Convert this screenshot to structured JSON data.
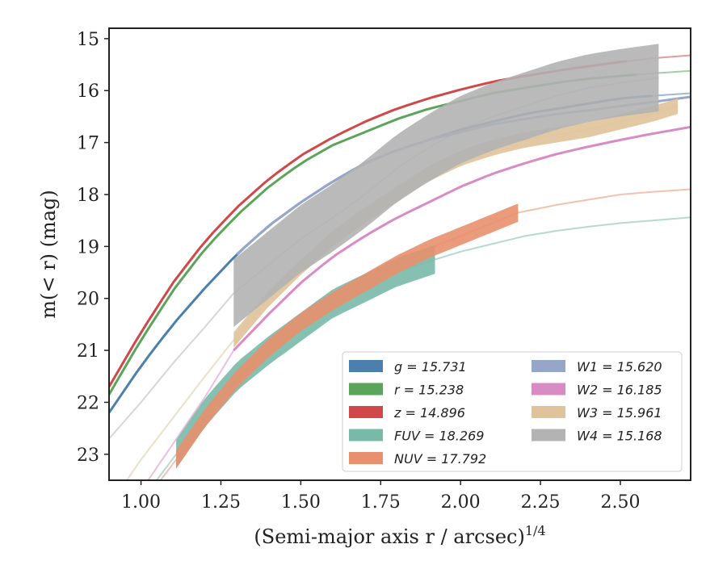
{
  "chart_data": {
    "type": "line",
    "xlabel": "(Semi-major axis r / arcsec)",
    "xlabel_exponent": "1/4",
    "ylabel": "m(< r) (mag)",
    "xlim": [
      0.9,
      2.72
    ],
    "ylim": [
      23.5,
      14.8
    ],
    "y_inverted": true,
    "grid": false,
    "legend_position": "lower-right",
    "x_ticks": [
      "1.00",
      "1.25",
      "1.50",
      "1.75",
      "2.00",
      "2.25",
      "2.50"
    ],
    "x_tick_values": [
      1.0,
      1.25,
      1.5,
      1.75,
      2.0,
      2.25,
      2.5
    ],
    "y_ticks": [
      "15",
      "16",
      "17",
      "18",
      "19",
      "20",
      "21",
      "22",
      "23"
    ],
    "y_tick_values": [
      15,
      16,
      17,
      18,
      19,
      20,
      21,
      22,
      23
    ],
    "series": [
      {
        "name": "g = 15.731",
        "band": "g",
        "total": "15.731",
        "color": "#4c7fae",
        "band_start": 0.9,
        "band_end": 2.6,
        "x": [
          0.9,
          1.0,
          1.1,
          1.2,
          1.3,
          1.4,
          1.5,
          1.6,
          1.7,
          1.8,
          1.9,
          2.0,
          2.1,
          2.2,
          2.3,
          2.4,
          2.5,
          2.6,
          2.72
        ],
        "y": [
          22.2,
          21.3,
          20.5,
          19.8,
          19.15,
          18.6,
          18.15,
          17.75,
          17.4,
          17.15,
          16.95,
          16.75,
          16.6,
          16.45,
          16.35,
          16.25,
          16.15,
          16.1,
          16.05
        ]
      },
      {
        "name": "r = 15.238",
        "band": "r",
        "total": "15.238",
        "color": "#5aa55a",
        "band_start": 0.9,
        "band_end": 2.55,
        "x": [
          0.9,
          1.0,
          1.1,
          1.2,
          1.3,
          1.4,
          1.5,
          1.6,
          1.7,
          1.8,
          1.9,
          2.0,
          2.1,
          2.2,
          2.3,
          2.4,
          2.5,
          2.6,
          2.72
        ],
        "y": [
          21.85,
          20.8,
          19.85,
          19.05,
          18.4,
          17.85,
          17.4,
          17.05,
          16.8,
          16.55,
          16.35,
          16.2,
          16.05,
          15.95,
          15.85,
          15.77,
          15.72,
          15.67,
          15.62
        ]
      },
      {
        "name": "z = 14.896",
        "band": "z",
        "total": "14.896",
        "color": "#d04848",
        "band_start": 0.9,
        "band_end": 2.52,
        "x": [
          0.9,
          1.0,
          1.1,
          1.2,
          1.3,
          1.4,
          1.5,
          1.6,
          1.7,
          1.8,
          1.9,
          2.0,
          2.1,
          2.2,
          2.3,
          2.4,
          2.5,
          2.6,
          2.72
        ],
        "y": [
          21.7,
          20.65,
          19.7,
          18.9,
          18.25,
          17.7,
          17.25,
          16.9,
          16.6,
          16.35,
          16.15,
          15.98,
          15.83,
          15.72,
          15.62,
          15.53,
          15.45,
          15.38,
          15.32
        ]
      },
      {
        "name": "FUV = 18.269",
        "band": "FUV",
        "total": "18.269",
        "color": "#79b9a8",
        "band_start": 1.11,
        "band_end": 1.92,
        "x": [
          0.9,
          1.0,
          1.11,
          1.2,
          1.3,
          1.4,
          1.5,
          1.6,
          1.7,
          1.8,
          1.92,
          2.0,
          2.1,
          2.2,
          2.3,
          2.4,
          2.5,
          2.6,
          2.72
        ],
        "y": [
          24.5,
          23.9,
          23.0,
          22.2,
          21.5,
          21.0,
          20.55,
          20.1,
          19.8,
          19.5,
          19.25,
          19.1,
          18.95,
          18.8,
          18.7,
          18.62,
          18.55,
          18.5,
          18.44
        ]
      },
      {
        "name": "NUV = 17.792",
        "band": "NUV",
        "total": "17.792",
        "color": "#e8906e",
        "band_start": 1.11,
        "band_end": 2.18,
        "x": [
          0.9,
          1.0,
          1.11,
          1.2,
          1.3,
          1.4,
          1.5,
          1.6,
          1.7,
          1.8,
          1.9,
          2.0,
          2.1,
          2.18,
          2.3,
          2.4,
          2.5,
          2.6,
          2.72
        ],
        "y": [
          24.8,
          24.0,
          23.1,
          22.3,
          21.55,
          20.95,
          20.45,
          20.05,
          19.7,
          19.35,
          19.05,
          18.8,
          18.55,
          18.35,
          18.2,
          18.1,
          18.0,
          17.95,
          17.9
        ]
      },
      {
        "name": "W1 = 15.620",
        "band": "W1",
        "total": "15.620",
        "color": "#95a6c8",
        "band_start": 1.3,
        "band_end": 2.72,
        "x": [
          0.9,
          1.0,
          1.1,
          1.2,
          1.3,
          1.4,
          1.5,
          1.6,
          1.7,
          1.8,
          1.9,
          2.0,
          2.1,
          2.2,
          2.3,
          2.4,
          2.5,
          2.6,
          2.72
        ],
        "y": [
          22.2,
          21.3,
          20.5,
          19.8,
          19.15,
          18.6,
          18.15,
          17.75,
          17.4,
          17.15,
          16.95,
          16.8,
          16.65,
          16.55,
          16.45,
          16.38,
          16.3,
          16.22,
          16.12
        ]
      },
      {
        "name": "W2 = 16.185",
        "band": "W2",
        "total": "16.185",
        "color": "#d98bc4",
        "band_start": 1.29,
        "band_end": 2.72,
        "x": [
          0.9,
          1.0,
          1.1,
          1.2,
          1.29,
          1.4,
          1.5,
          1.6,
          1.7,
          1.8,
          1.9,
          2.0,
          2.1,
          2.2,
          2.3,
          2.4,
          2.5,
          2.6,
          2.72
        ],
        "y": [
          24.6,
          23.7,
          22.8,
          21.9,
          21.0,
          20.3,
          19.7,
          19.2,
          18.8,
          18.45,
          18.15,
          17.85,
          17.6,
          17.4,
          17.22,
          17.08,
          16.95,
          16.83,
          16.7
        ]
      },
      {
        "name": "W3 = 15.961",
        "band": "W3",
        "total": "15.961",
        "color": "#dfc39a",
        "band_start": 1.29,
        "band_end": 2.68,
        "x": [
          0.9,
          1.0,
          1.1,
          1.2,
          1.29,
          1.4,
          1.5,
          1.6,
          1.7,
          1.8,
          1.9,
          2.0,
          2.1,
          2.2,
          2.3,
          2.4,
          2.5,
          2.6,
          2.68
        ],
        "y": [
          24.0,
          23.1,
          22.3,
          21.5,
          20.8,
          20.0,
          19.4,
          18.85,
          18.4,
          18.0,
          17.6,
          17.3,
          17.1,
          16.95,
          16.85,
          16.75,
          16.6,
          16.45,
          16.3
        ]
      },
      {
        "name": "W4 = 15.168",
        "band": "W4",
        "total": "15.168",
        "color": "#b3b3b3",
        "band_start": 1.29,
        "band_end": 2.62,
        "x": [
          0.9,
          1.0,
          1.1,
          1.2,
          1.29,
          1.4,
          1.5,
          1.6,
          1.7,
          1.8,
          1.9,
          2.0,
          2.1,
          2.2,
          2.3,
          2.4,
          2.5,
          2.62
        ],
        "y": [
          22.7,
          22.0,
          21.25,
          20.55,
          19.9,
          19.35,
          18.85,
          18.45,
          18.0,
          17.5,
          17.1,
          16.75,
          16.5,
          16.3,
          16.1,
          15.95,
          15.85,
          15.75
        ]
      }
    ],
    "legend_columns": [
      [
        "g",
        "r",
        "z",
        "FUV",
        "NUV"
      ],
      [
        "W1",
        "W2",
        "W3",
        "W4"
      ]
    ]
  }
}
